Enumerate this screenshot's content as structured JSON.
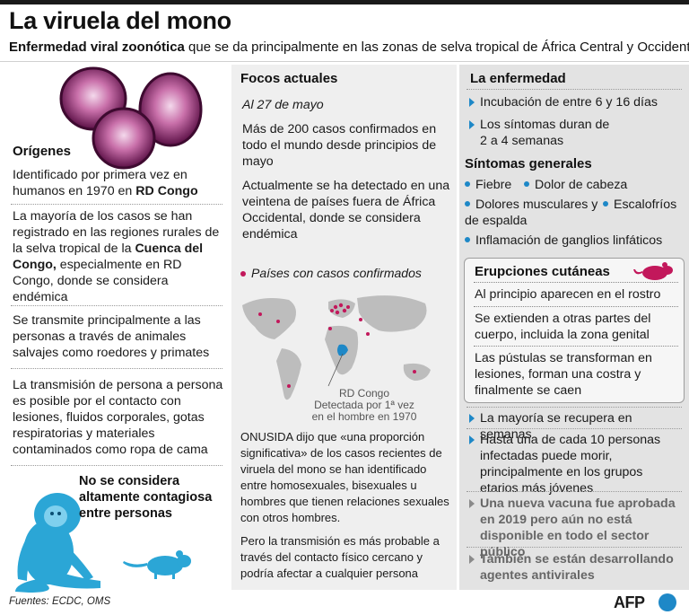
{
  "title": "La viruela del mono",
  "subtitle": {
    "bold": "Enfermedad viral zoonótica",
    "rest": " que se da principalmente en las zonas de selva tropical de África Central y Occidental"
  },
  "origins": {
    "heading": "Orígenes",
    "items": [
      {
        "pre": "Identificado por primera vez en humanos en 1970 en ",
        "bold": "RD Congo",
        "post": ""
      },
      {
        "pre": "La mayoría de los casos se han registrado en las regiones rurales de la selva tropical de la ",
        "bold": "Cuenca del Congo,",
        "post": " especialmente en RD Congo, donde se considera endémica"
      },
      {
        "pre": "Se transmite principalmente a las personas a través de animales salvajes como roedores y primates",
        "bold": "",
        "post": ""
      },
      {
        "pre": "La transmisión de persona a persona es posible por el contacto con lesiones, fluidos corporales, gotas respiratorias y materiales contaminados como ropa de cama",
        "bold": "",
        "post": ""
      }
    ],
    "not_contagious": "No se considera altamente contagiosa entre personas"
  },
  "focos": {
    "heading": "Focos actuales",
    "date": "Al 27 de mayo",
    "p1": "Más de 200 casos confirmados en todo el mundo desde principios de mayo",
    "p2": "Actualmente se ha detectado en una veintena de países fuera de África Occidental, donde se considera endémica",
    "legend": "Países con casos confirmados",
    "map_label_l1": "RD Congo",
    "map_label_l2": "Detectada por 1ª vez",
    "map_label_l3": "en el hombre en 1970",
    "quote1": "ONUSIDA dijo que «una proporción significativa» de los casos recientes de viruela del mono se han identificado entre homosexuales, bisexuales u hombres que tienen relaciones sexuales con otros hombres.",
    "quote2": "Pero la transmisión es más probable a través del contacto físico cercano y podría afectar a cualquier persona"
  },
  "disease": {
    "heading": "La enfermedad",
    "items": [
      "Incubación de entre 6 y 16 días",
      "Los síntomas duran de 2 a 4 semanas"
    ],
    "symptoms_heading": "Síntomas generales",
    "symptoms": [
      "Fiebre",
      "Dolor de cabeza",
      "Dolores musculares y de espalda",
      "Escalofríos",
      "Inflamación de ganglios linfáticos"
    ],
    "eruptions_heading": "Erupciones cutáneas",
    "eruptions": [
      "Al principio aparecen en el rostro",
      "Se extienden a otras partes del cuerpo, incluida la zona genital",
      "Las pústulas se transforman en lesiones, forman una costra y finalmente se caen"
    ],
    "outcomes": [
      "La mayoría se recupera en semanas",
      "Hasta una de cada 10 personas infectadas puede morir, principalmente en los grupos etarios más jóvenes"
    ],
    "notes": [
      "Una nueva vacuna fue aprobada en 2019 pero aún no está disponible en todo el sector público",
      "También se están desarrollando agentes antivirales"
    ]
  },
  "footer": {
    "sources": "Fuentes: ECDC, OMS",
    "brand": "AFP"
  },
  "colors": {
    "accent": "#1e88c7",
    "virus": "#8e2a6e",
    "case_dot": "#c2185b"
  }
}
